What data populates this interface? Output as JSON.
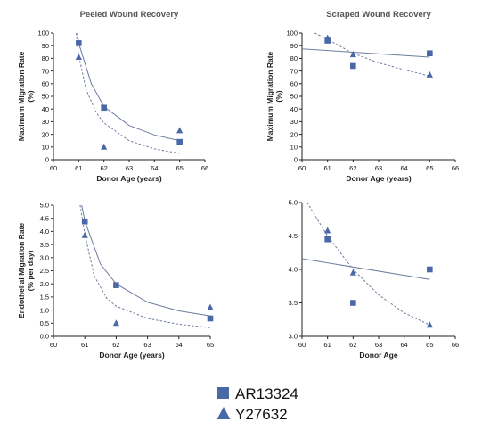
{
  "colors": {
    "marker": "#4a68a8",
    "fit": "#6d7d9e",
    "axis": "#222222"
  },
  "legend": {
    "items": [
      {
        "label": "AR13324",
        "marker": "square"
      },
      {
        "label": "Y27632",
        "marker": "triangle"
      }
    ]
  },
  "chart_data": [
    {
      "type": "scatter",
      "title": "Peeled Wound Recovery",
      "xlabel": "Donor Age (years)",
      "ylabel": [
        "Maximum Migration Rate",
        "(%)"
      ],
      "xlim": [
        60,
        66
      ],
      "ylim": [
        0,
        100
      ],
      "xticks": [
        60,
        61,
        62,
        63,
        64,
        65,
        66
      ],
      "yticks": [
        0,
        10,
        20,
        30,
        40,
        50,
        60,
        70,
        80,
        90,
        100
      ],
      "series": [
        {
          "name": "AR13324",
          "marker": "square",
          "points": [
            [
              61,
              92
            ],
            [
              62,
              41
            ],
            [
              65,
              14
            ]
          ],
          "fit": "solid",
          "fit_curve": [
            [
              60.95,
              100
            ],
            [
              61,
              92
            ],
            [
              61.5,
              60
            ],
            [
              62,
              42
            ],
            [
              63,
              27
            ],
            [
              64,
              19.5
            ],
            [
              65,
              15
            ]
          ]
        },
        {
          "name": "Y27632",
          "marker": "triangle",
          "points": [
            [
              61,
              81
            ],
            [
              62,
              10
            ],
            [
              65,
              23
            ]
          ],
          "fit": "dashed",
          "fit_curve": [
            [
              60.9,
              100
            ],
            [
              61,
              82
            ],
            [
              61.3,
              55
            ],
            [
              61.7,
              37
            ],
            [
              62,
              29
            ],
            [
              63,
              15
            ],
            [
              64,
              8.5
            ],
            [
              65,
              5
            ]
          ]
        }
      ]
    },
    {
      "type": "scatter",
      "title": "Scraped Wound Recovery",
      "xlabel": "Donor Age (years)",
      "ylabel": [
        "Maximum Migration Rate",
        "(%)"
      ],
      "xlim": [
        60,
        66
      ],
      "ylim": [
        0,
        100
      ],
      "xticks": [
        60,
        61,
        62,
        63,
        64,
        65,
        66
      ],
      "yticks": [
        0,
        10,
        20,
        30,
        40,
        50,
        60,
        70,
        80,
        90,
        100
      ],
      "series": [
        {
          "name": "AR13324",
          "marker": "square",
          "points": [
            [
              61,
              94
            ],
            [
              62,
              74
            ],
            [
              65,
              84
            ]
          ],
          "fit": "solid",
          "fit_curve": [
            [
              60,
              87.5
            ],
            [
              65,
              81
            ]
          ]
        },
        {
          "name": "Y27632",
          "marker": "triangle",
          "points": [
            [
              61,
              96
            ],
            [
              62,
              83
            ],
            [
              65,
              67
            ]
          ],
          "fit": "dashed",
          "fit_curve": [
            [
              60.5,
              100
            ],
            [
              61,
              95
            ],
            [
              62,
              84
            ],
            [
              63,
              76.5
            ],
            [
              64,
              71
            ],
            [
              65,
              66
            ]
          ]
        }
      ]
    },
    {
      "type": "scatter",
      "title": "",
      "xlabel": "Donor Age (years)",
      "ylabel": [
        "Endothelial Migration Rate",
        "(% per day)"
      ],
      "xlim": [
        60,
        65
      ],
      "ylim": [
        0,
        5
      ],
      "xticks": [
        60,
        61,
        62,
        63,
        64,
        65
      ],
      "yticks": [
        0.0,
        0.5,
        1.0,
        1.5,
        2.0,
        2.5,
        3.0,
        3.5,
        4.0,
        4.5,
        5.0
      ],
      "yticks_label": [
        "0.0",
        "0.5",
        "1.0",
        "1.5",
        "2.0",
        "2.5",
        "3.0",
        "3.5",
        "4.0",
        "4.5",
        "5.0"
      ],
      "series": [
        {
          "name": "AR13324",
          "marker": "square",
          "points": [
            [
              61,
              4.38
            ],
            [
              62,
              1.95
            ],
            [
              65,
              0.68
            ]
          ],
          "fit": "solid",
          "fit_curve": [
            [
              60.9,
              5.0
            ],
            [
              61,
              4.4
            ],
            [
              61.5,
              2.75
            ],
            [
              62,
              2.0
            ],
            [
              63,
              1.3
            ],
            [
              64,
              0.97
            ],
            [
              65,
              0.78
            ]
          ]
        },
        {
          "name": "Y27632",
          "marker": "triangle",
          "points": [
            [
              61,
              3.85
            ],
            [
              62,
              0.5
            ],
            [
              65,
              1.1
            ]
          ],
          "fit": "dashed",
          "fit_curve": [
            [
              60.85,
              5.0
            ],
            [
              61,
              3.9
            ],
            [
              61.3,
              2.3
            ],
            [
              61.7,
              1.45
            ],
            [
              62,
              1.15
            ],
            [
              63,
              0.68
            ],
            [
              64,
              0.46
            ],
            [
              65,
              0.33
            ]
          ]
        }
      ]
    },
    {
      "type": "scatter",
      "title": "",
      "xlabel": "Donor Age",
      "ylabel": [],
      "xlim": [
        60,
        66
      ],
      "ylim": [
        3.0,
        5.0
      ],
      "xticks": [
        60,
        61,
        62,
        63,
        64,
        65,
        66
      ],
      "yticks": [
        3.0,
        3.5,
        4.0,
        4.5,
        5.0
      ],
      "yticks_label": [
        "3.0",
        "3.5",
        "4.0",
        "4.5",
        "5.0"
      ],
      "series": [
        {
          "name": "AR13324",
          "marker": "square",
          "points": [
            [
              61,
              4.45
            ],
            [
              62,
              3.5
            ],
            [
              65,
              4.0
            ]
          ],
          "fit": "solid",
          "fit_curve": [
            [
              60,
              4.16
            ],
            [
              65,
              3.85
            ]
          ]
        },
        {
          "name": "Y27632",
          "marker": "triangle",
          "points": [
            [
              61,
              4.58
            ],
            [
              62,
              3.95
            ],
            [
              65,
              3.17
            ]
          ],
          "fit": "dashed",
          "fit_curve": [
            [
              60.2,
              5.0
            ],
            [
              61,
              4.5
            ],
            [
              62,
              4.0
            ],
            [
              63,
              3.62
            ],
            [
              64,
              3.35
            ],
            [
              65,
              3.17
            ]
          ]
        }
      ]
    }
  ]
}
